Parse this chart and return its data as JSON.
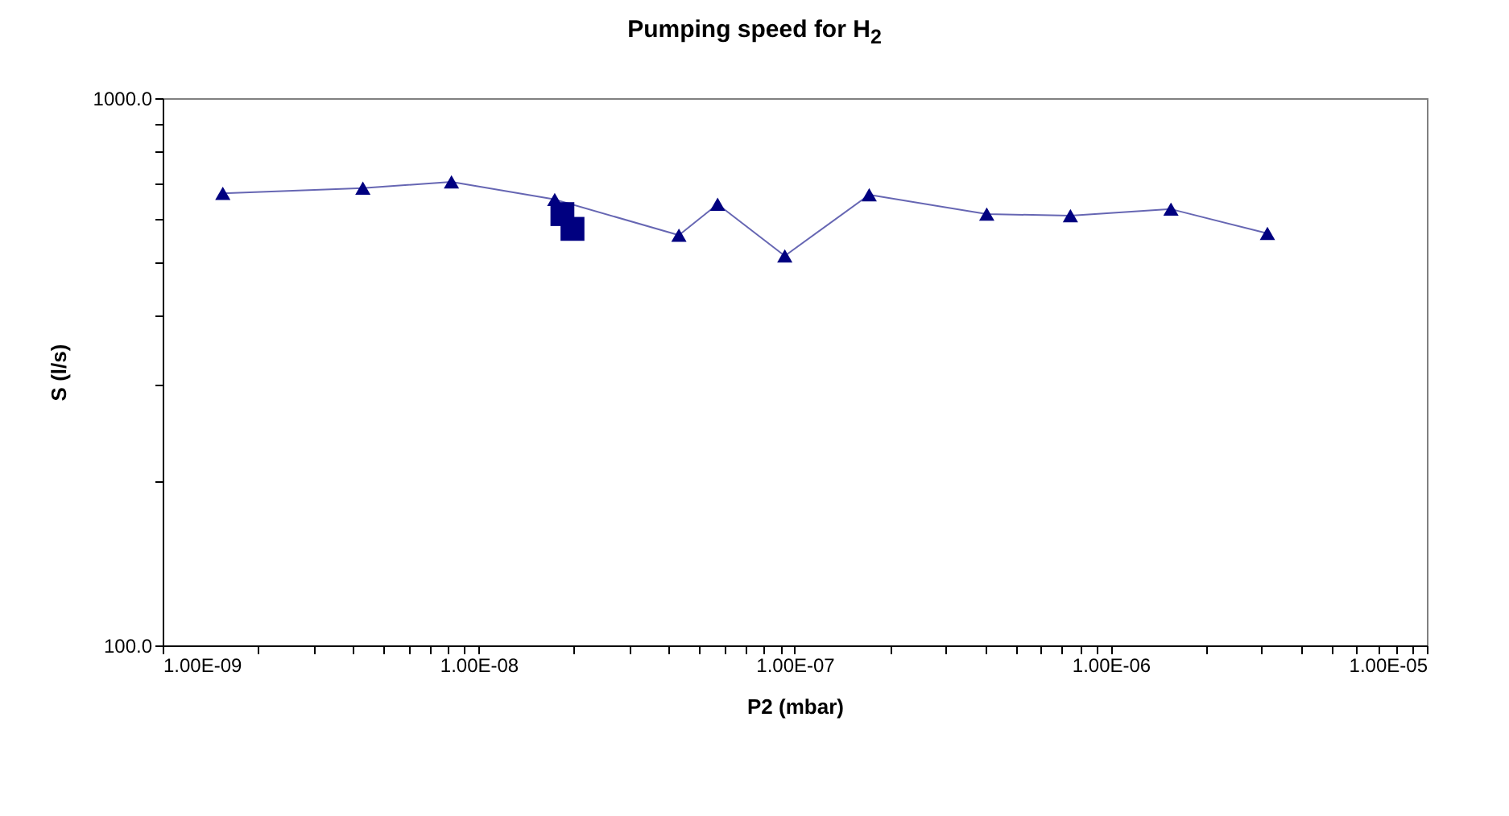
{
  "chart_data": {
    "type": "line",
    "title": "Pumping speed for H$_{2}$",
    "xlabel": "P2 (mbar)",
    "ylabel": "S (l/s)",
    "log": "xy",
    "grid": false,
    "xlim": [
      1e-09,
      1e-05
    ],
    "ylim": [
      100,
      1000
    ],
    "xticks": [
      {
        "value": 1e-09,
        "label": "1.00E-09"
      },
      {
        "value": 2e-09,
        "label": null
      },
      {
        "value": 3e-09,
        "label": null
      },
      {
        "value": 4e-09,
        "label": null
      },
      {
        "value": 5e-09,
        "label": null
      },
      {
        "value": 6e-09,
        "label": null
      },
      {
        "value": 7e-09,
        "label": null
      },
      {
        "value": 8e-09,
        "label": null
      },
      {
        "value": 9e-09,
        "label": null
      },
      {
        "value": 1e-08,
        "label": "1.00E-08"
      },
      {
        "value": 2e-08,
        "label": null
      },
      {
        "value": 3e-08,
        "label": null
      },
      {
        "value": 4e-08,
        "label": null
      },
      {
        "value": 5e-08,
        "label": null
      },
      {
        "value": 6e-08,
        "label": null
      },
      {
        "value": 7e-08,
        "label": null
      },
      {
        "value": 8e-08,
        "label": null
      },
      {
        "value": 9e-08,
        "label": null
      },
      {
        "value": 1e-07,
        "label": "1.00E-07"
      },
      {
        "value": 2e-07,
        "label": null
      },
      {
        "value": 3e-07,
        "label": null
      },
      {
        "value": 4e-07,
        "label": null
      },
      {
        "value": 5e-07,
        "label": null
      },
      {
        "value": 6e-07,
        "label": null
      },
      {
        "value": 7e-07,
        "label": null
      },
      {
        "value": 8e-07,
        "label": null
      },
      {
        "value": 9e-07,
        "label": null
      },
      {
        "value": 1e-06,
        "label": "1.00E-06"
      },
      {
        "value": 2e-06,
        "label": null
      },
      {
        "value": 3e-06,
        "label": null
      },
      {
        "value": 4e-06,
        "label": null
      },
      {
        "value": 5e-06,
        "label": null
      },
      {
        "value": 6e-06,
        "label": null
      },
      {
        "value": 7e-06,
        "label": null
      },
      {
        "value": 8e-06,
        "label": null
      },
      {
        "value": 9e-06,
        "label": null
      },
      {
        "value": 1e-05,
        "label": "1.00E-05"
      }
    ],
    "yticks": [
      {
        "value": 100,
        "label": "100.0"
      },
      {
        "value": 200,
        "label": null
      },
      {
        "value": 300,
        "label": null
      },
      {
        "value": 400,
        "label": null
      },
      {
        "value": 500,
        "label": null
      },
      {
        "value": 600,
        "label": null
      },
      {
        "value": 700,
        "label": null
      },
      {
        "value": 800,
        "label": null
      },
      {
        "value": 900,
        "label": null
      },
      {
        "value": 1000,
        "label": "1000.0"
      }
    ],
    "series": [
      {
        "marker": "triangle",
        "color": "#000080",
        "x": [
          1.55e-09,
          4.3e-09,
          8.2e-09,
          1.74e-08,
          4.3e-08,
          5.7e-08,
          9.3e-08,
          1.72e-07,
          4.05e-07,
          7.45e-07,
          1.55e-06,
          3.13e-06
        ],
        "values": [
          670,
          685,
          703,
          653,
          562,
          640,
          515,
          666,
          614,
          610,
          627,
          566
        ]
      },
      {
        "type": "scatter",
        "marker": "square",
        "color": "#000080",
        "x": [
          1.84e-08,
          1.98e-08
        ],
        "values": [
          614,
          577
        ]
      }
    ]
  }
}
